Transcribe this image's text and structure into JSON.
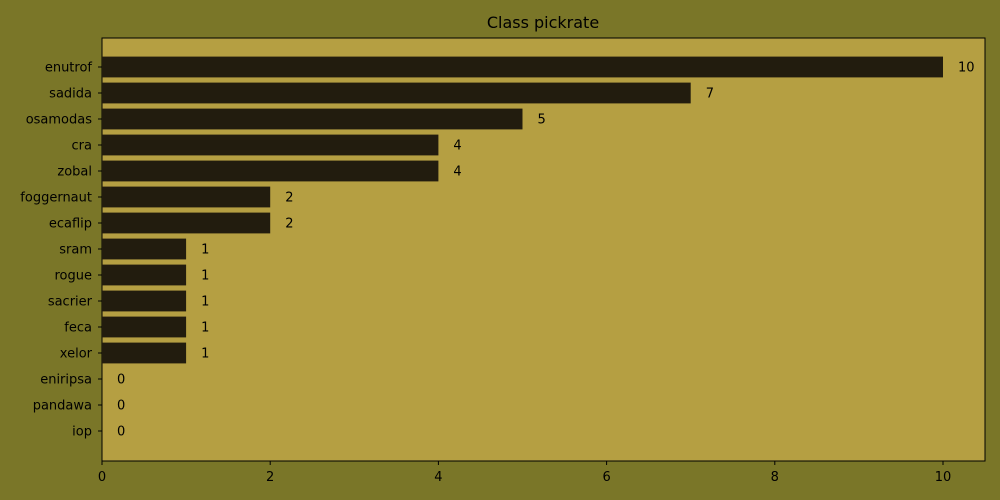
{
  "chart_data": {
    "type": "bar",
    "orientation": "horizontal",
    "title": "Class pickrate",
    "xlabel": "",
    "ylabel": "",
    "categories": [
      "enutrof",
      "sadida",
      "osamodas",
      "cra",
      "zobal",
      "foggernaut",
      "ecaflip",
      "sram",
      "rogue",
      "sacrier",
      "feca",
      "xelor",
      "eniripsa",
      "pandawa",
      "iop"
    ],
    "values": [
      10,
      7,
      5,
      4,
      4,
      2,
      2,
      1,
      1,
      1,
      1,
      1,
      0,
      0,
      0
    ],
    "xlim": [
      0,
      10.5
    ],
    "xticks": [
      0,
      2,
      4,
      6,
      8,
      10
    ],
    "grid": false,
    "bar_color": "#221c0e",
    "plot_background": "#b59f42",
    "figure_background": "#7a7628"
  }
}
